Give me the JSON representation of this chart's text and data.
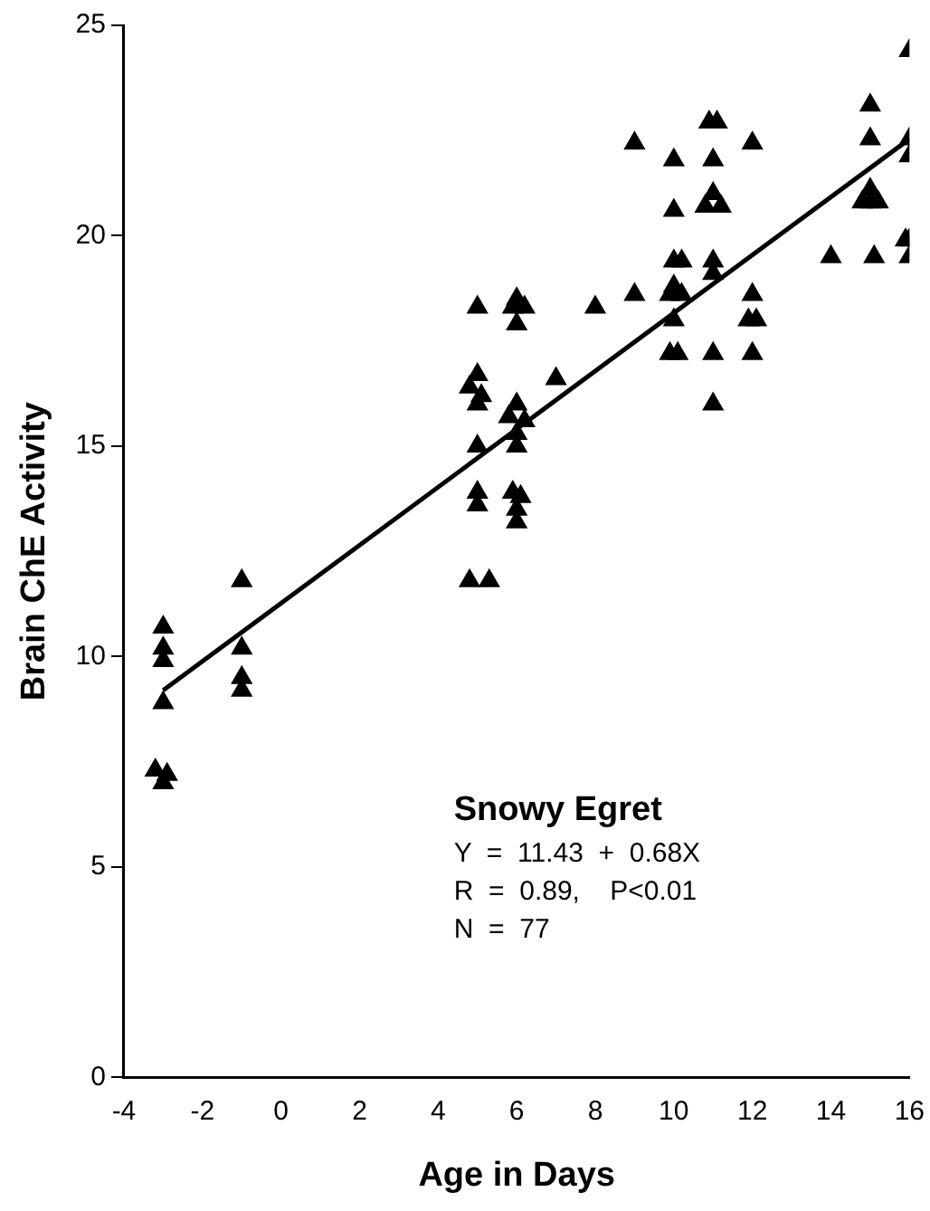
{
  "chart_data": {
    "type": "scatter",
    "xlabel": "Age in Days",
    "ylabel": "Brain ChE Activity",
    "annotations": [
      "Snowy Egret",
      "Y  =  11.43  +  0.68X",
      "R  =  0.89,    P<0.01",
      "N  =  77"
    ],
    "xlim": [
      -4,
      16
    ],
    "ylim": [
      0,
      25
    ],
    "xticks": [
      -4,
      -2,
      0,
      2,
      4,
      6,
      8,
      10,
      12,
      14,
      16
    ],
    "yticks": [
      0,
      5,
      10,
      15,
      20,
      25
    ],
    "grid": false,
    "legend": false,
    "series": [
      {
        "marker": "triangle",
        "color": "#000000",
        "x": [
          -3,
          -3,
          -3,
          -3,
          -3.2,
          -2.9,
          -3,
          -1,
          -1,
          -1,
          -1,
          5,
          5,
          4.8,
          5.1,
          5,
          5,
          5,
          5,
          4.8,
          5.3,
          6,
          6.2,
          5.9,
          6,
          6,
          5.8,
          6.2,
          6,
          6,
          5.9,
          6.1,
          6,
          6,
          7,
          8,
          9,
          9,
          10,
          10,
          10,
          10.2,
          10,
          9.9,
          10.2,
          10,
          9.9,
          10.1,
          10.9,
          11.1,
          11,
          11,
          10.8,
          11.2,
          11,
          11,
          11,
          11,
          12,
          12,
          11.9,
          12.1,
          12,
          14,
          15,
          15,
          15,
          14.8,
          15.2,
          15,
          15.1,
          16,
          16,
          16,
          15.9,
          16,
          16
        ],
        "values": [
          10.7,
          10.2,
          9.9,
          8.9,
          7.3,
          7.2,
          7.0,
          11.8,
          10.2,
          9.5,
          9.2,
          18.3,
          16.7,
          16.4,
          16.2,
          16.0,
          15.0,
          13.9,
          13.6,
          11.8,
          11.8,
          18.5,
          18.3,
          18.3,
          17.9,
          16.0,
          15.7,
          15.6,
          15.3,
          15.0,
          13.9,
          13.8,
          13.5,
          13.2,
          16.6,
          18.3,
          18.6,
          22.2,
          21.8,
          20.6,
          19.4,
          19.4,
          18.8,
          18.6,
          18.6,
          18.0,
          17.2,
          17.2,
          22.7,
          22.7,
          21.8,
          21.0,
          20.7,
          20.7,
          19.4,
          19.1,
          17.2,
          16.0,
          22.2,
          18.6,
          18.0,
          18.0,
          17.2,
          19.5,
          23.1,
          22.3,
          21.1,
          20.8,
          20.8,
          20.8,
          19.5,
          24.4,
          22.3,
          21.9,
          19.9,
          19.9,
          19.5
        ]
      },
      {
        "type": "line",
        "marker": "none",
        "color": "#000000",
        "x": [
          -3,
          16
        ],
        "values": [
          9.2,
          22.3
        ]
      }
    ]
  }
}
